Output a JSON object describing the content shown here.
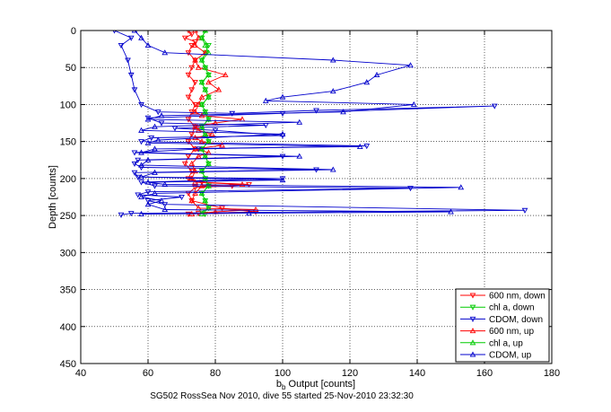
{
  "chart_data": {
    "type": "line",
    "xlabel_main": "b",
    "xlabel_sub": "b",
    "xlabel_rest": " Output [counts]",
    "ylabel": "Depth [counts]",
    "caption": "SG502 RossSea Nov 2010, dive 55 started 25-Nov-2010 23:32:30",
    "xlim": [
      40,
      180
    ],
    "ylim": [
      0,
      450
    ],
    "y_reversed": true,
    "grid": true,
    "legend_position": "bottom-right",
    "xticks": [
      40,
      60,
      80,
      100,
      120,
      140,
      160,
      180
    ],
    "yticks": [
      0,
      50,
      100,
      150,
      200,
      250,
      300,
      350,
      400,
      450
    ],
    "series": [
      {
        "name": "600 nm, down",
        "color": "#ff0000",
        "marker": "triangle-down",
        "line": true,
        "points": [
          [
            72,
            0
          ],
          [
            73,
            5
          ],
          [
            71,
            10
          ],
          [
            74,
            15
          ],
          [
            73,
            20
          ],
          [
            72,
            30
          ],
          [
            74,
            40
          ],
          [
            73,
            50
          ],
          [
            72,
            60
          ],
          [
            74,
            70
          ],
          [
            73,
            80
          ],
          [
            72,
            90
          ],
          [
            74,
            100
          ],
          [
            73,
            110
          ],
          [
            72,
            120
          ],
          [
            74,
            130
          ],
          [
            73,
            140
          ],
          [
            72,
            150
          ],
          [
            74,
            160
          ],
          [
            72,
            170
          ],
          [
            71,
            180
          ],
          [
            73,
            190
          ],
          [
            72,
            200
          ],
          [
            76,
            205
          ],
          [
            90,
            208
          ],
          [
            85,
            210
          ],
          [
            74,
            212
          ],
          [
            72,
            220
          ],
          [
            73,
            230
          ],
          [
            82,
            240
          ],
          [
            92,
            245
          ],
          [
            75,
            247
          ],
          [
            72,
            248
          ]
        ]
      },
      {
        "name": "chl a, down",
        "color": "#00cc00",
        "marker": "triangle-down",
        "line": true,
        "points": [
          [
            77,
            0
          ],
          [
            76,
            10
          ],
          [
            78,
            20
          ],
          [
            77,
            30
          ],
          [
            76,
            40
          ],
          [
            77,
            50
          ],
          [
            78,
            60
          ],
          [
            76,
            70
          ],
          [
            77,
            80
          ],
          [
            78,
            90
          ],
          [
            76,
            100
          ],
          [
            77,
            110
          ],
          [
            78,
            120
          ],
          [
            76,
            130
          ],
          [
            77,
            140
          ],
          [
            78,
            150
          ],
          [
            76,
            160
          ],
          [
            77,
            170
          ],
          [
            78,
            180
          ],
          [
            76,
            190
          ],
          [
            77,
            200
          ],
          [
            78,
            210
          ],
          [
            76,
            220
          ],
          [
            77,
            230
          ],
          [
            78,
            240
          ],
          [
            76,
            245
          ],
          [
            77,
            248
          ]
        ]
      },
      {
        "name": "CDOM, down",
        "color": "#0000cc",
        "marker": "triangle-down",
        "line": true,
        "points": [
          [
            50,
            0
          ],
          [
            55,
            10
          ],
          [
            52,
            20
          ],
          [
            54,
            40
          ],
          [
            55,
            60
          ],
          [
            56,
            80
          ],
          [
            58,
            100
          ],
          [
            63,
            110
          ],
          [
            85,
            112
          ],
          [
            110,
            108
          ],
          [
            163,
            102
          ],
          [
            100,
            112
          ],
          [
            60,
            118
          ],
          [
            64,
            125
          ],
          [
            95,
            128
          ],
          [
            68,
            132
          ],
          [
            80,
            135
          ],
          [
            100,
            142
          ],
          [
            61,
            145
          ],
          [
            58,
            150
          ],
          [
            125,
            156
          ],
          [
            75,
            160
          ],
          [
            56,
            165
          ],
          [
            100,
            170
          ],
          [
            57,
            175
          ],
          [
            56,
            180
          ],
          [
            58,
            185
          ],
          [
            110,
            188
          ],
          [
            56,
            192
          ],
          [
            57,
            198
          ],
          [
            100,
            200
          ],
          [
            58,
            205
          ],
          [
            62,
            210
          ],
          [
            138,
            213
          ],
          [
            60,
            218
          ],
          [
            57,
            222
          ],
          [
            70,
            225
          ],
          [
            60,
            230
          ],
          [
            65,
            235
          ],
          [
            172,
            243
          ],
          [
            55,
            247
          ],
          [
            52,
            249
          ]
        ]
      },
      {
        "name": "600 nm, up",
        "color": "#ff0000",
        "marker": "triangle-up",
        "line": true,
        "points": [
          [
            73,
            248
          ],
          [
            80,
            245
          ],
          [
            92,
            242
          ],
          [
            75,
            240
          ],
          [
            73,
            230
          ],
          [
            74,
            220
          ],
          [
            76,
            210
          ],
          [
            88,
            208
          ],
          [
            74,
            205
          ],
          [
            73,
            200
          ],
          [
            74,
            190
          ],
          [
            73,
            180
          ],
          [
            75,
            170
          ],
          [
            78,
            165
          ],
          [
            74,
            160
          ],
          [
            82,
            155
          ],
          [
            76,
            150
          ],
          [
            74,
            145
          ],
          [
            79,
            140
          ],
          [
            75,
            135
          ],
          [
            74,
            130
          ],
          [
            80,
            125
          ],
          [
            88,
            120
          ],
          [
            76,
            115
          ],
          [
            74,
            110
          ],
          [
            75,
            100
          ],
          [
            76,
            90
          ],
          [
            81,
            80
          ],
          [
            78,
            70
          ],
          [
            83,
            60
          ],
          [
            75,
            50
          ],
          [
            74,
            40
          ],
          [
            77,
            30
          ],
          [
            74,
            20
          ],
          [
            75,
            10
          ],
          [
            74,
            0
          ]
        ]
      },
      {
        "name": "chl a, up",
        "color": "#00cc00",
        "marker": "triangle-up",
        "line": true,
        "points": [
          [
            76,
            248
          ],
          [
            78,
            240
          ],
          [
            77,
            230
          ],
          [
            76,
            220
          ],
          [
            78,
            210
          ],
          [
            77,
            200
          ],
          [
            76,
            190
          ],
          [
            78,
            180
          ],
          [
            77,
            170
          ],
          [
            76,
            160
          ],
          [
            78,
            150
          ],
          [
            77,
            140
          ],
          [
            76,
            130
          ],
          [
            78,
            120
          ],
          [
            77,
            110
          ],
          [
            76,
            100
          ],
          [
            78,
            90
          ],
          [
            77,
            80
          ],
          [
            76,
            70
          ],
          [
            78,
            60
          ],
          [
            77,
            50
          ],
          [
            76,
            40
          ],
          [
            78,
            30
          ],
          [
            77,
            20
          ],
          [
            76,
            10
          ],
          [
            77,
            0
          ]
        ]
      },
      {
        "name": "CDOM, up",
        "color": "#0000cc",
        "marker": "triangle-up",
        "line": true,
        "points": [
          [
            58,
            248
          ],
          [
            90,
            247
          ],
          [
            150,
            245
          ],
          [
            65,
            242
          ],
          [
            60,
            235
          ],
          [
            64,
            230
          ],
          [
            58,
            225
          ],
          [
            62,
            220
          ],
          [
            153,
            212
          ],
          [
            65,
            208
          ],
          [
            60,
            205
          ],
          [
            100,
            202
          ],
          [
            58,
            198
          ],
          [
            62,
            192
          ],
          [
            115,
            188
          ],
          [
            58,
            182
          ],
          [
            60,
            175
          ],
          [
            105,
            170
          ],
          [
            58,
            165
          ],
          [
            62,
            160
          ],
          [
            123,
            157
          ],
          [
            60,
            152
          ],
          [
            63,
            148
          ],
          [
            100,
            140
          ],
          [
            58,
            135
          ],
          [
            62,
            130
          ],
          [
            105,
            124
          ],
          [
            60,
            120
          ],
          [
            64,
            115
          ],
          [
            118,
            110
          ],
          [
            139,
            100
          ],
          [
            95,
            95
          ],
          [
            100,
            90
          ],
          [
            115,
            82
          ],
          [
            125,
            70
          ],
          [
            128,
            60
          ],
          [
            138,
            47
          ],
          [
            115,
            40
          ],
          [
            65,
            30
          ],
          [
            60,
            20
          ],
          [
            58,
            10
          ],
          [
            56,
            0
          ]
        ]
      }
    ]
  }
}
